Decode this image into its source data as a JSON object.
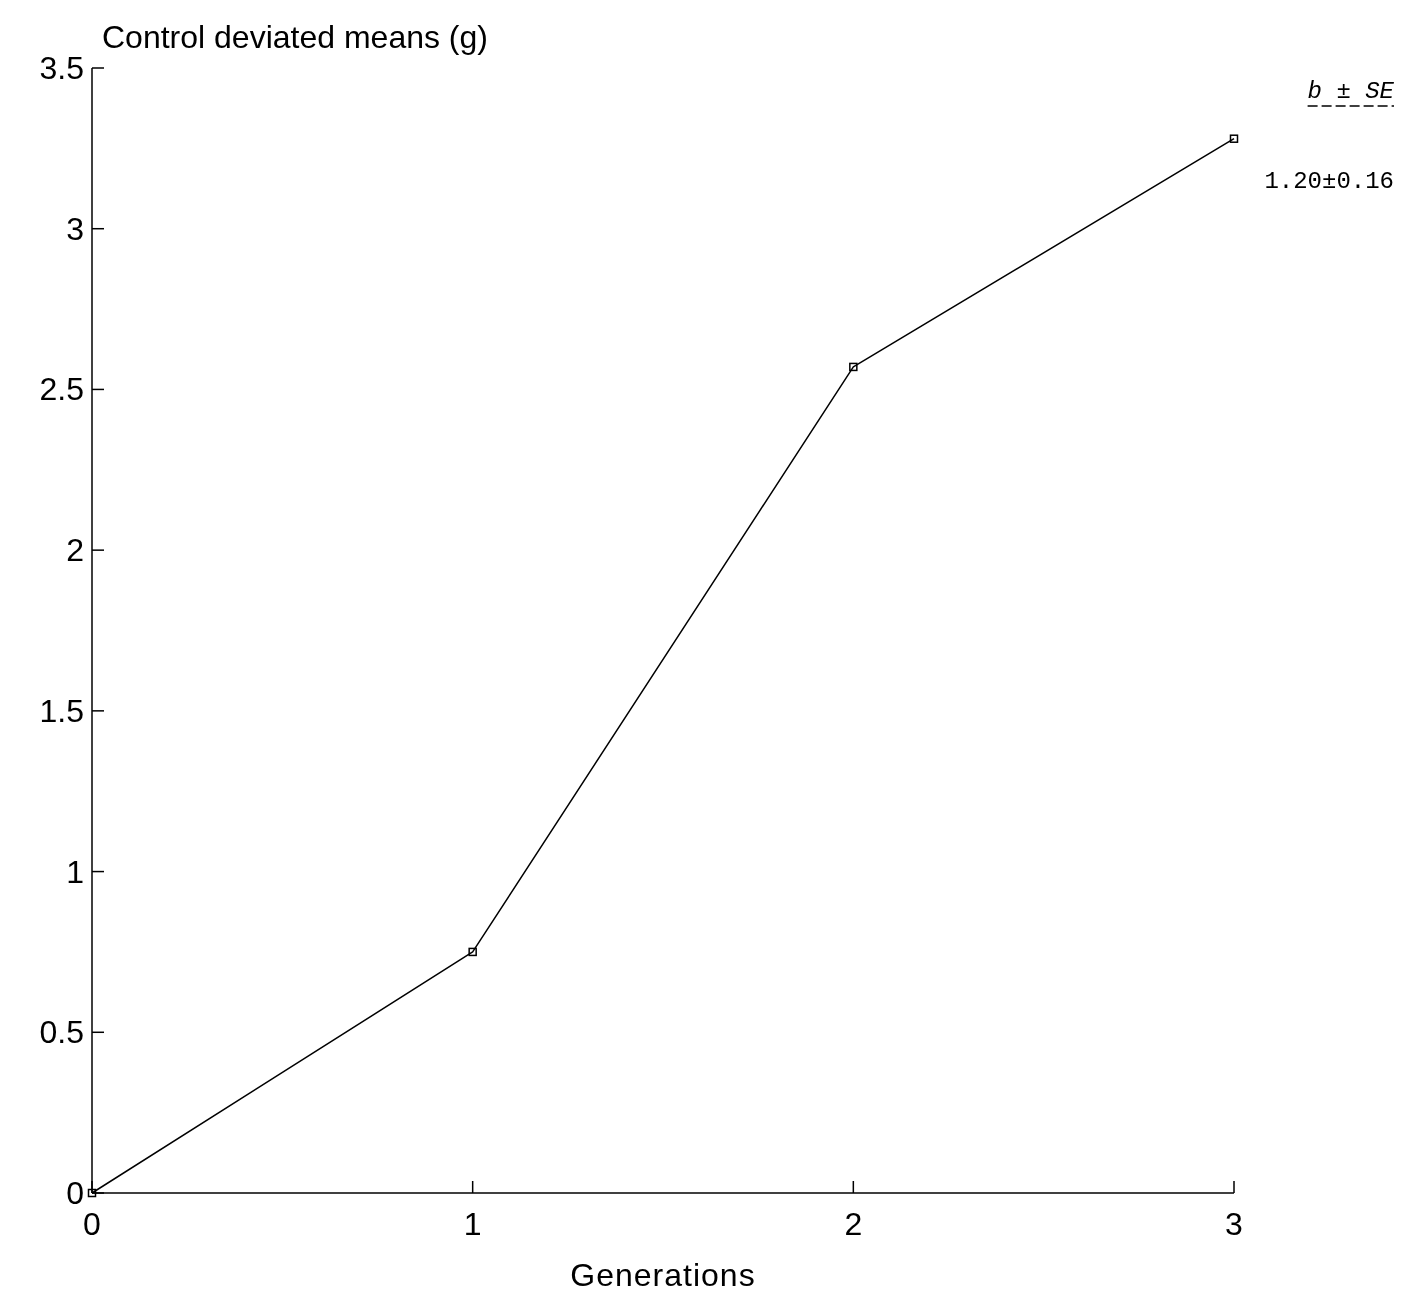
{
  "chart_data": {
    "type": "line",
    "xlabel": "Generations",
    "ylabel": "Control deviated means (g)",
    "x": [
      0,
      1,
      2,
      3
    ],
    "series": [
      {
        "color": "#000000",
        "values": [
          0,
          0.75,
          2.57,
          3.28
        ]
      }
    ],
    "xlim": [
      0,
      3
    ],
    "xticks": [
      0,
      1,
      2,
      3
    ],
    "ylim": [
      0,
      3.5
    ],
    "yticks": [
      0,
      0.5,
      1,
      1.5,
      2,
      2.5,
      3,
      3.5
    ],
    "marker": "square",
    "line_style": "solid",
    "grid": false,
    "annotations": [
      "b ± SE",
      "1.20±0.16"
    ]
  }
}
